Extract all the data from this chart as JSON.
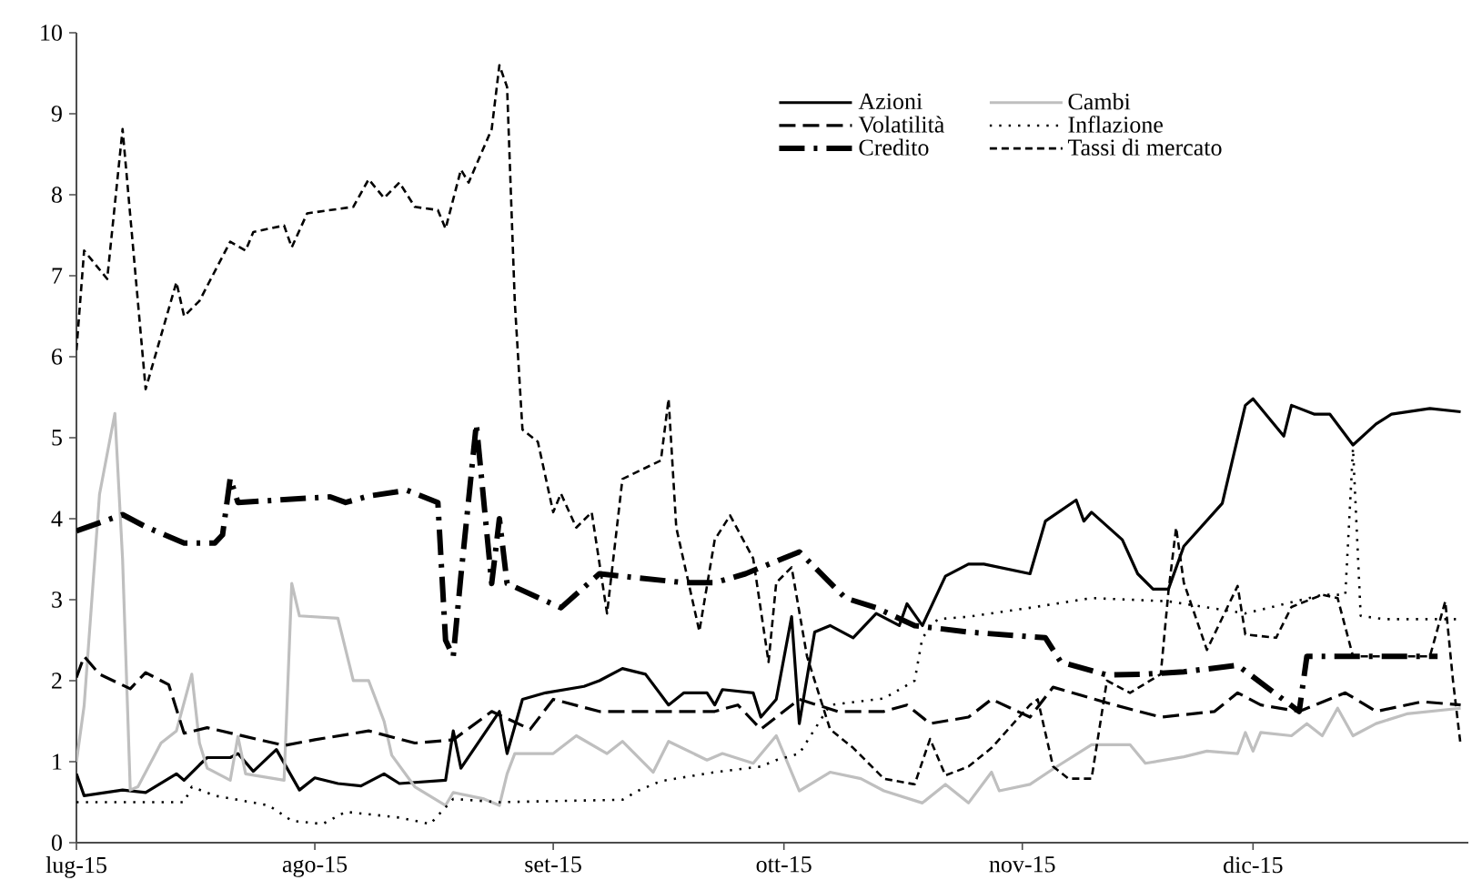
{
  "chart_data": {
    "type": "line",
    "xlim": [
      "2015-07-01",
      "2015-12-29"
    ],
    "xticks": [
      {
        "value": "2015-07-01",
        "label": "lug-15"
      },
      {
        "value": "2015-08-01",
        "label": "ago-15"
      },
      {
        "value": "2015-09-01",
        "label": "set-15"
      },
      {
        "value": "2015-10-01",
        "label": "ott-15"
      },
      {
        "value": "2015-11-01",
        "label": "nov-15"
      },
      {
        "value": "2015-12-01",
        "label": "dic-15"
      }
    ],
    "ylim": [
      0,
      10
    ],
    "yticks": [
      0,
      1,
      2,
      3,
      4,
      5,
      6,
      7,
      8,
      9,
      10
    ],
    "grid": false,
    "legend": "top right",
    "series": [
      {
        "name": "Azioni",
        "color": "#000000",
        "line_style": "solid",
        "x": [
          "2015-07-01",
          "2015-07-02",
          "2015-07-07",
          "2015-07-10",
          "2015-07-14",
          "2015-07-15",
          "2015-07-17",
          "2015-07-18",
          "2015-07-21",
          "2015-07-22",
          "2015-07-24",
          "2015-07-27",
          "2015-07-30",
          "2015-08-01",
          "2015-08-04",
          "2015-08-07",
          "2015-08-10",
          "2015-08-12",
          "2015-08-18",
          "2015-08-19",
          "2015-08-20",
          "2015-08-25",
          "2015-08-26",
          "2015-08-28",
          "2015-08-31",
          "2015-09-05",
          "2015-09-07",
          "2015-09-10",
          "2015-09-13",
          "2015-09-16",
          "2015-09-18",
          "2015-09-21",
          "2015-09-22",
          "2015-09-23",
          "2015-09-27",
          "2015-09-28",
          "2015-09-30",
          "2015-10-02",
          "2015-10-03",
          "2015-10-05",
          "2015-10-07",
          "2015-10-10",
          "2015-10-13",
          "2015-10-16",
          "2015-10-17",
          "2015-10-19",
          "2015-10-22",
          "2015-10-25",
          "2015-10-27",
          "2015-11-02",
          "2015-11-04",
          "2015-11-08",
          "2015-11-09",
          "2015-11-10",
          "2015-11-14",
          "2015-11-16",
          "2015-11-18",
          "2015-11-20",
          "2015-11-22",
          "2015-11-27",
          "2015-11-30",
          "2015-12-01",
          "2015-12-05",
          "2015-12-06",
          "2015-12-09",
          "2015-12-11",
          "2015-12-14",
          "2015-12-17",
          "2015-12-19",
          "2015-12-24",
          "2015-12-28"
        ],
        "values": [
          0.85,
          0.58,
          0.65,
          0.62,
          0.85,
          0.77,
          0.96,
          1.05,
          1.05,
          1.1,
          0.88,
          1.15,
          0.65,
          0.8,
          0.73,
          0.7,
          0.85,
          0.73,
          0.77,
          1.38,
          0.92,
          1.62,
          1.1,
          1.77,
          1.85,
          1.93,
          2.0,
          2.15,
          2.08,
          1.7,
          1.85,
          1.85,
          1.7,
          1.89,
          1.85,
          1.55,
          1.77,
          2.79,
          1.47,
          2.6,
          2.68,
          2.53,
          2.83,
          2.68,
          2.95,
          2.68,
          3.29,
          3.44,
          3.44,
          3.32,
          3.97,
          4.23,
          3.97,
          4.08,
          3.74,
          3.32,
          3.13,
          3.13,
          3.66,
          4.19,
          5.4,
          5.48,
          5.02,
          5.4,
          5.29,
          5.29,
          4.91,
          5.17,
          5.29,
          5.36,
          5.32
        ]
      },
      {
        "name": "Cambi",
        "color": "#bfbfbf",
        "line_style": "solid",
        "x": [
          "2015-07-01",
          "2015-07-02",
          "2015-07-04",
          "2015-07-06",
          "2015-07-07",
          "2015-07-08",
          "2015-07-09",
          "2015-07-12",
          "2015-07-14",
          "2015-07-16",
          "2015-07-17",
          "2015-07-18",
          "2015-07-21",
          "2015-07-22",
          "2015-07-23",
          "2015-07-28",
          "2015-07-29",
          "2015-07-30",
          "2015-08-04",
          "2015-08-06",
          "2015-08-08",
          "2015-08-10",
          "2015-08-11",
          "2015-08-14",
          "2015-08-18",
          "2015-08-19",
          "2015-08-23",
          "2015-08-25",
          "2015-08-26",
          "2015-08-27",
          "2015-09-01",
          "2015-09-04",
          "2015-09-08",
          "2015-09-10",
          "2015-09-14",
          "2015-09-16",
          "2015-09-21",
          "2015-09-23",
          "2015-09-27",
          "2015-09-30",
          "2015-10-03",
          "2015-10-07",
          "2015-10-11",
          "2015-10-14",
          "2015-10-19",
          "2015-10-22",
          "2015-10-25",
          "2015-10-28",
          "2015-10-29",
          "2015-11-02",
          "2015-11-05",
          "2015-11-10",
          "2015-11-15",
          "2015-11-17",
          "2015-11-22",
          "2015-11-25",
          "2015-11-29",
          "2015-11-30",
          "2015-12-01",
          "2015-12-02",
          "2015-12-06",
          "2015-12-08",
          "2015-12-10",
          "2015-12-12",
          "2015-12-14",
          "2015-12-17",
          "2015-12-21",
          "2015-12-28"
        ],
        "values": [
          1.0,
          1.69,
          4.3,
          5.3,
          3.5,
          0.65,
          0.69,
          1.23,
          1.38,
          2.08,
          1.23,
          0.92,
          0.77,
          1.31,
          0.85,
          0.77,
          3.2,
          2.8,
          2.77,
          2.0,
          2.0,
          1.5,
          1.08,
          0.69,
          0.46,
          0.62,
          0.54,
          0.46,
          0.85,
          1.1,
          1.1,
          1.32,
          1.1,
          1.25,
          0.87,
          1.25,
          1.02,
          1.1,
          0.98,
          1.32,
          0.64,
          0.87,
          0.79,
          0.64,
          0.49,
          0.72,
          0.49,
          0.87,
          0.64,
          0.72,
          0.91,
          1.21,
          1.21,
          0.98,
          1.06,
          1.13,
          1.1,
          1.36,
          1.13,
          1.36,
          1.32,
          1.47,
          1.32,
          1.66,
          1.32,
          1.47,
          1.59,
          1.66
        ]
      },
      {
        "name": "Volatilità",
        "color": "#000000",
        "line_style": "dashed",
        "x": [
          "2015-07-01",
          "2015-07-02",
          "2015-07-04",
          "2015-07-08",
          "2015-07-10",
          "2015-07-13",
          "2015-07-15",
          "2015-07-18",
          "2015-07-23",
          "2015-07-28",
          "2015-08-01",
          "2015-08-08",
          "2015-08-14",
          "2015-08-19",
          "2015-08-24",
          "2015-08-29",
          "2015-09-01",
          "2015-09-07",
          "2015-09-15",
          "2015-09-22",
          "2015-09-25",
          "2015-09-28",
          "2015-09-30",
          "2015-10-03",
          "2015-10-08",
          "2015-10-14",
          "2015-10-17",
          "2015-10-20",
          "2015-10-25",
          "2015-10-28",
          "2015-11-02",
          "2015-11-05",
          "2015-11-13",
          "2015-11-19",
          "2015-11-26",
          "2015-11-29",
          "2015-12-02",
          "2015-12-07",
          "2015-12-13",
          "2015-12-17",
          "2015-12-23",
          "2015-12-28"
        ],
        "values": [
          2.04,
          2.3,
          2.08,
          1.9,
          2.1,
          1.95,
          1.35,
          1.42,
          1.31,
          1.2,
          1.27,
          1.38,
          1.23,
          1.27,
          1.62,
          1.4,
          1.77,
          1.62,
          1.62,
          1.62,
          1.7,
          1.4,
          1.55,
          1.77,
          1.62,
          1.62,
          1.7,
          1.47,
          1.55,
          1.77,
          1.55,
          1.92,
          1.7,
          1.55,
          1.62,
          1.85,
          1.7,
          1.62,
          1.85,
          1.62,
          1.74,
          1.7
        ]
      },
      {
        "name": "Inflazione",
        "color": "#000000",
        "line_style": "dotted",
        "x": [
          "2015-07-01",
          "2015-07-05",
          "2015-07-15",
          "2015-07-16",
          "2015-07-19",
          "2015-07-26",
          "2015-07-29",
          "2015-08-02",
          "2015-08-05",
          "2015-08-12",
          "2015-08-16",
          "2015-08-19",
          "2015-08-25",
          "2015-09-10",
          "2015-09-12",
          "2015-09-15",
          "2015-09-22",
          "2015-09-28",
          "2015-09-30",
          "2015-10-03",
          "2015-10-07",
          "2015-10-14",
          "2015-10-18",
          "2015-10-19",
          "2015-10-21",
          "2015-10-25",
          "2015-11-02",
          "2015-11-10",
          "2015-11-20",
          "2015-11-30",
          "2015-12-10",
          "2015-12-13",
          "2015-12-14",
          "2015-12-15",
          "2015-12-18",
          "2015-12-28"
        ],
        "values": [
          0.5,
          0.5,
          0.5,
          0.69,
          0.58,
          0.46,
          0.27,
          0.23,
          0.38,
          0.31,
          0.23,
          0.54,
          0.5,
          0.53,
          0.64,
          0.76,
          0.87,
          0.94,
          1.02,
          1.1,
          1.7,
          1.78,
          2.0,
          2.53,
          2.76,
          2.79,
          2.9,
          3.02,
          2.98,
          2.83,
          3.06,
          3.06,
          4.87,
          2.8,
          2.76,
          2.76
        ]
      },
      {
        "name": "Credito",
        "color": "#000000",
        "line_style": "dashed",
        "x": [
          "2015-07-01",
          "2015-07-07",
          "2015-07-10",
          "2015-07-15",
          "2015-07-19",
          "2015-07-20",
          "2015-07-21",
          "2015-07-22",
          "2015-08-03",
          "2015-08-05",
          "2015-08-08",
          "2015-08-13",
          "2015-08-17",
          "2015-08-18",
          "2015-08-19",
          "2015-08-20",
          "2015-08-22",
          "2015-08-24",
          "2015-08-25",
          "2015-08-26",
          "2015-09-02",
          "2015-09-07",
          "2015-09-18",
          "2015-09-22",
          "2015-09-26",
          "2015-10-03",
          "2015-10-09",
          "2015-10-13",
          "2015-10-18",
          "2015-10-25",
          "2015-11-04",
          "2015-11-06",
          "2015-11-12",
          "2015-11-17",
          "2015-11-22",
          "2015-11-29",
          "2015-12-07",
          "2015-12-08",
          "2015-12-14",
          "2015-12-25"
        ],
        "values": [
          3.85,
          4.05,
          3.9,
          3.7,
          3.7,
          3.8,
          4.5,
          4.2,
          4.27,
          4.2,
          4.28,
          4.35,
          4.2,
          2.5,
          2.3,
          3.3,
          5.17,
          3.2,
          4.0,
          3.2,
          2.9,
          3.32,
          3.21,
          3.21,
          3.32,
          3.59,
          3.02,
          2.9,
          2.68,
          2.6,
          2.53,
          2.23,
          2.07,
          2.08,
          2.11,
          2.19,
          1.62,
          2.3,
          2.3,
          2.3
        ]
      },
      {
        "name": "Tassi di mercato",
        "color": "#000000",
        "line_style": "dashed",
        "x": [
          "2015-07-01",
          "2015-07-02",
          "2015-07-05",
          "2015-07-07",
          "2015-07-10",
          "2015-07-14",
          "2015-07-15",
          "2015-07-17",
          "2015-07-21",
          "2015-07-23",
          "2015-07-24",
          "2015-07-28",
          "2015-07-29",
          "2015-07-31",
          "2015-08-03",
          "2015-08-06",
          "2015-08-08",
          "2015-08-10",
          "2015-08-12",
          "2015-08-14",
          "2015-08-17",
          "2015-08-18",
          "2015-08-20",
          "2015-08-21",
          "2015-08-24",
          "2015-08-25",
          "2015-08-26",
          "2015-08-27",
          "2015-08-28",
          "2015-08-30",
          "2015-09-01",
          "2015-09-02",
          "2015-09-04",
          "2015-09-06",
          "2015-09-08",
          "2015-09-10",
          "2015-09-15",
          "2015-09-16",
          "2015-09-17",
          "2015-09-20",
          "2015-09-22",
          "2015-09-24",
          "2015-09-27",
          "2015-09-29",
          "2015-09-30",
          "2015-10-02",
          "2015-10-04",
          "2015-10-07",
          "2015-10-10",
          "2015-10-14",
          "2015-10-18",
          "2015-10-20",
          "2015-10-22",
          "2015-10-25",
          "2015-10-28",
          "2015-11-02",
          "2015-11-03",
          "2015-11-05",
          "2015-11-07",
          "2015-11-10",
          "2015-11-12",
          "2015-11-15",
          "2015-11-19",
          "2015-11-20",
          "2015-11-21",
          "2015-11-22",
          "2015-11-25",
          "2015-11-29",
          "2015-11-30",
          "2015-12-04",
          "2015-12-06",
          "2015-12-10",
          "2015-12-12",
          "2015-12-14",
          "2015-12-17",
          "2015-12-24",
          "2015-12-26",
          "2015-12-27",
          "2015-12-28"
        ],
        "values": [
          6.08,
          7.31,
          6.96,
          8.81,
          5.6,
          6.92,
          6.5,
          6.69,
          7.42,
          7.31,
          7.54,
          7.62,
          7.35,
          7.77,
          7.81,
          7.85,
          8.19,
          7.96,
          8.15,
          7.85,
          7.81,
          7.58,
          8.31,
          8.15,
          8.81,
          9.6,
          9.33,
          6.68,
          5.1,
          4.95,
          4.08,
          4.31,
          3.89,
          4.08,
          2.83,
          4.49,
          4.72,
          5.48,
          3.89,
          2.61,
          3.74,
          4.04,
          3.51,
          2.23,
          3.21,
          3.4,
          2.3,
          1.4,
          1.17,
          0.79,
          0.72,
          1.28,
          0.83,
          0.94,
          1.17,
          1.7,
          1.77,
          0.94,
          0.79,
          0.79,
          2.0,
          1.85,
          2.08,
          3.1,
          3.89,
          3.21,
          2.38,
          3.17,
          2.57,
          2.53,
          2.91,
          3.06,
          3.02,
          2.3,
          2.3,
          2.3,
          2.98,
          2.0,
          1.2
        ]
      }
    ]
  }
}
